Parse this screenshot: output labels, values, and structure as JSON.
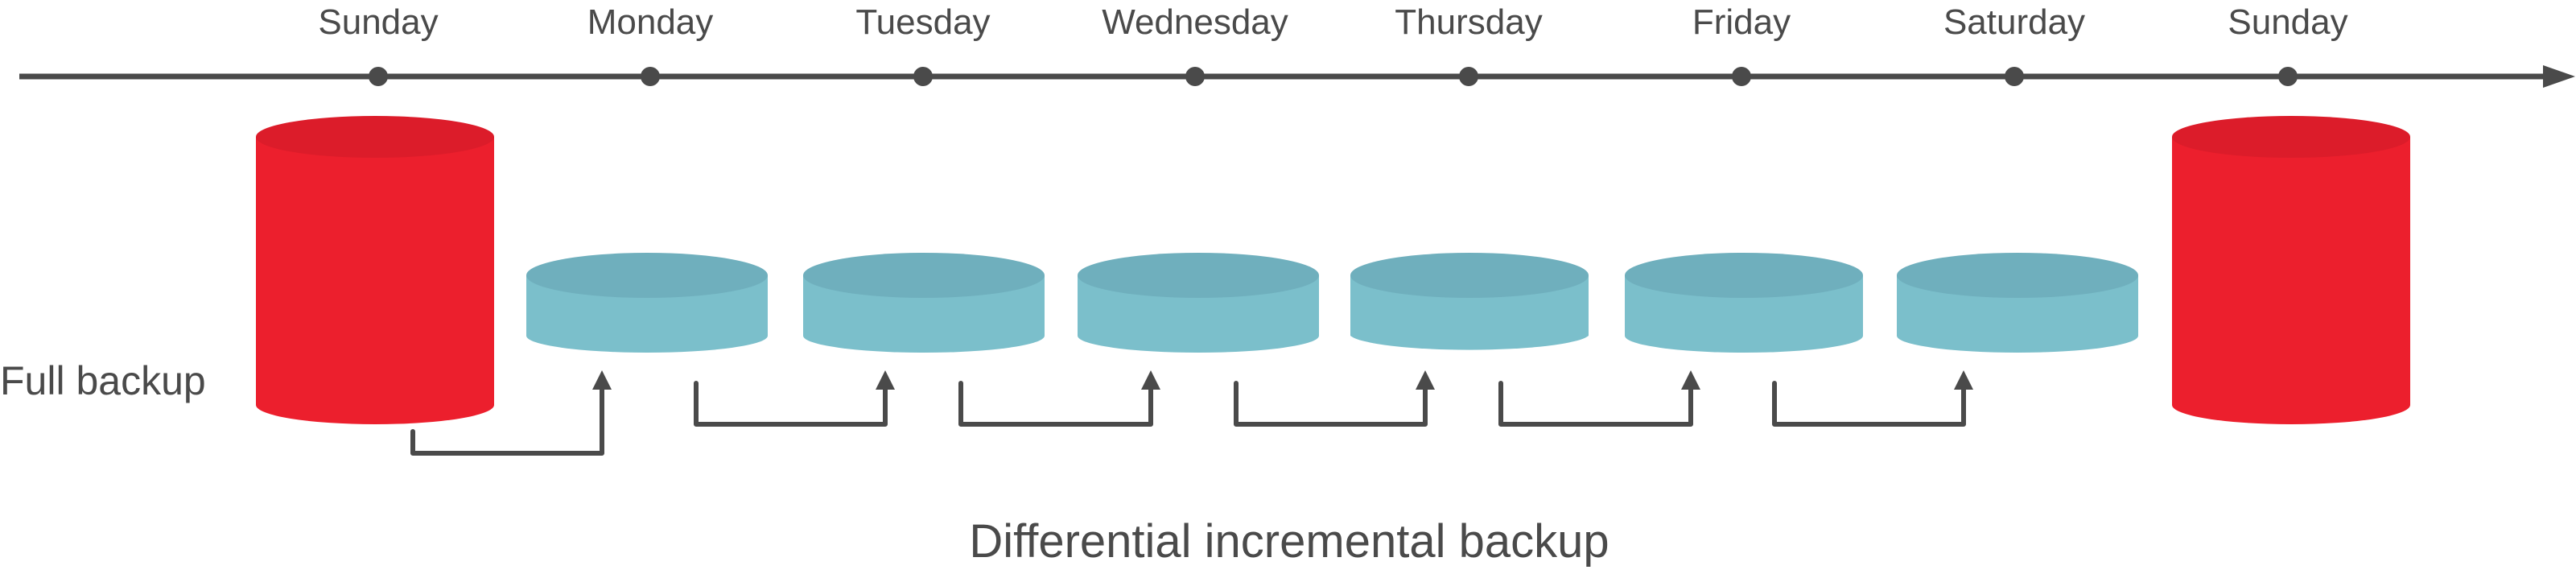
{
  "timeline": {
    "days": [
      "Sunday",
      "Monday",
      "Tuesday",
      "Wednesday",
      "Thursday",
      "Friday",
      "Saturday",
      "Sunday"
    ]
  },
  "labels": {
    "full_backup": "Full backup",
    "caption": "Differential incremental backup"
  },
  "colors": {
    "line": "#4a4a4a",
    "full_body": "#ec1f2d",
    "full_top": "#dc1c2a",
    "incr_body": "#7bbfcb",
    "incr_top": "#6fafbd"
  }
}
